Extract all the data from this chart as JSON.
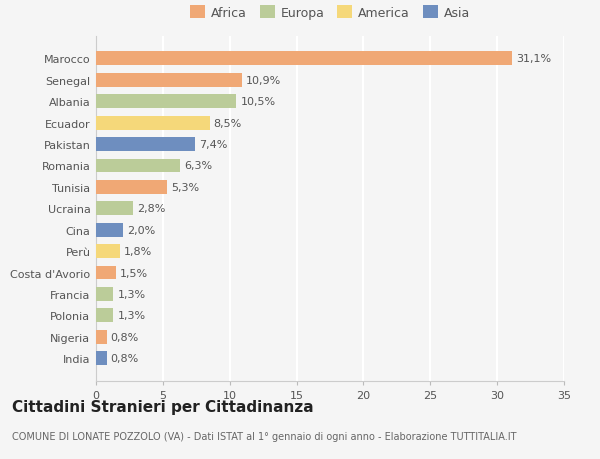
{
  "countries": [
    "Marocco",
    "Senegal",
    "Albania",
    "Ecuador",
    "Pakistan",
    "Romania",
    "Tunisia",
    "Ucraina",
    "Cina",
    "Perù",
    "Costa d'Avorio",
    "Francia",
    "Polonia",
    "Nigeria",
    "India"
  ],
  "values": [
    31.1,
    10.9,
    10.5,
    8.5,
    7.4,
    6.3,
    5.3,
    2.8,
    2.0,
    1.8,
    1.5,
    1.3,
    1.3,
    0.8,
    0.8
  ],
  "labels": [
    "31,1%",
    "10,9%",
    "10,5%",
    "8,5%",
    "7,4%",
    "6,3%",
    "5,3%",
    "2,8%",
    "2,0%",
    "1,8%",
    "1,5%",
    "1,3%",
    "1,3%",
    "0,8%",
    "0,8%"
  ],
  "continents": [
    "Africa",
    "Africa",
    "Europa",
    "America",
    "Asia",
    "Europa",
    "Africa",
    "Europa",
    "Asia",
    "America",
    "Africa",
    "Europa",
    "Europa",
    "Africa",
    "Asia"
  ],
  "continent_colors": {
    "Africa": "#F0A875",
    "Europa": "#BBCC99",
    "America": "#F5D87A",
    "Asia": "#6E8EBF"
  },
  "legend_order": [
    "Africa",
    "Europa",
    "America",
    "Asia"
  ],
  "title": "Cittadini Stranieri per Cittadinanza",
  "subtitle": "COMUNE DI LONATE POZZOLO (VA) - Dati ISTAT al 1° gennaio di ogni anno - Elaborazione TUTTITALIA.IT",
  "xlim": [
    0,
    35
  ],
  "xticks": [
    0,
    5,
    10,
    15,
    20,
    25,
    30,
    35
  ],
  "background_color": "#f5f5f5",
  "bar_height": 0.65,
  "grid_color": "#ffffff",
  "title_fontsize": 11,
  "subtitle_fontsize": 7,
  "label_fontsize": 8,
  "tick_fontsize": 8,
  "legend_fontsize": 9
}
